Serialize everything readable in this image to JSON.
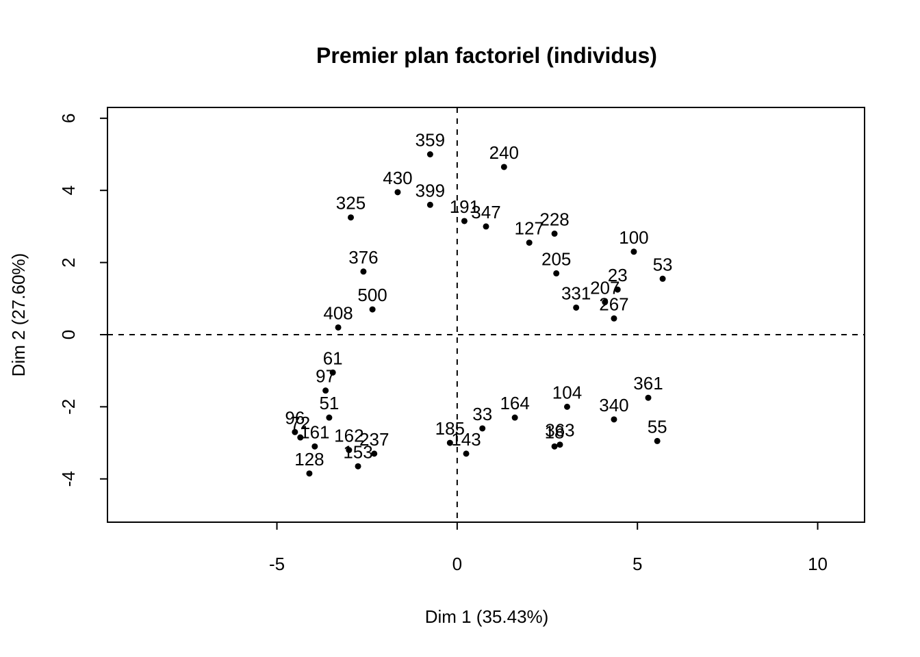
{
  "chart_data": {
    "type": "scatter",
    "title": "Premier plan factoriel (individus)",
    "xlabel": "Dim 1 (35.43%)",
    "ylabel": "Dim 2 (27.60%)",
    "xlim": [
      -9.7,
      11.3
    ],
    "ylim": [
      -5.2,
      6.3
    ],
    "xticks": [
      -5,
      0,
      5,
      10
    ],
    "yticks": [
      -4,
      -2,
      0,
      2,
      4,
      6
    ],
    "xtick_labels": [
      "-5",
      "0",
      "5",
      "10"
    ],
    "ytick_labels": [
      "-4",
      "-2",
      "0",
      "2",
      "4",
      "6"
    ],
    "reference_lines": {
      "x": 0,
      "y": 0,
      "style": "dashed"
    },
    "grid": false,
    "legend": "none",
    "point_color": "#000000",
    "labeled_points": [
      {
        "label": "359",
        "x": -0.75,
        "y": 5.0
      },
      {
        "label": "240",
        "x": 1.3,
        "y": 4.65
      },
      {
        "label": "430",
        "x": -1.65,
        "y": 3.95
      },
      {
        "label": "399",
        "x": -0.75,
        "y": 3.6
      },
      {
        "label": "325",
        "x": -2.95,
        "y": 3.25
      },
      {
        "label": "191",
        "x": 0.2,
        "y": 3.15
      },
      {
        "label": "347",
        "x": 0.8,
        "y": 3.0
      },
      {
        "label": "228",
        "x": 2.7,
        "y": 2.8
      },
      {
        "label": "127",
        "x": 2.0,
        "y": 2.55
      },
      {
        "label": "100",
        "x": 4.9,
        "y": 2.3
      },
      {
        "label": "53",
        "x": 5.7,
        "y": 1.55
      },
      {
        "label": "376",
        "x": -2.6,
        "y": 1.75
      },
      {
        "label": "205",
        "x": 2.75,
        "y": 1.7
      },
      {
        "label": "23",
        "x": 4.45,
        "y": 1.25
      },
      {
        "label": "207",
        "x": 4.1,
        "y": 0.9
      },
      {
        "label": "331",
        "x": 3.3,
        "y": 0.75
      },
      {
        "label": "500",
        "x": -2.35,
        "y": 0.7
      },
      {
        "label": "267",
        "x": 4.35,
        "y": 0.45
      },
      {
        "label": "408",
        "x": -3.3,
        "y": 0.2
      },
      {
        "label": "361",
        "x": 5.3,
        "y": -1.75
      },
      {
        "label": "55",
        "x": 5.55,
        "y": -2.95
      },
      {
        "label": "128",
        "x": -4.1,
        "y": -3.85
      },
      {
        "label": "153",
        "x": -2.75,
        "y": -3.65
      },
      {
        "label": "143",
        "x": 0.25,
        "y": -3.3
      },
      {
        "label": "185",
        "x": -0.2,
        "y": -3.0
      },
      {
        "label": "33",
        "x": 0.7,
        "y": -2.6
      },
      {
        "label": "363",
        "x": 2.85,
        "y": -3.05
      },
      {
        "label": "18",
        "x": 2.7,
        "y": -3.1
      },
      {
        "label": "96",
        "x": -4.5,
        "y": -2.7
      },
      {
        "label": "72",
        "x": -4.35,
        "y": -2.85
      },
      {
        "label": "161",
        "x": -3.95,
        "y": -3.1
      },
      {
        "label": "104",
        "x": 3.05,
        "y": -2.0
      },
      {
        "label": "340",
        "x": 4.35,
        "y": -2.35
      },
      {
        "label": "97",
        "x": -3.65,
        "y": -1.55
      },
      {
        "label": "61",
        "x": -3.45,
        "y": -1.05
      },
      {
        "label": "51",
        "x": -3.55,
        "y": -2.3
      },
      {
        "label": "237",
        "x": -2.3,
        "y": -3.3
      },
      {
        "label": "162",
        "x": -3.0,
        "y": -3.2
      },
      {
        "label": "164",
        "x": 1.6,
        "y": -2.3
      }
    ]
  }
}
